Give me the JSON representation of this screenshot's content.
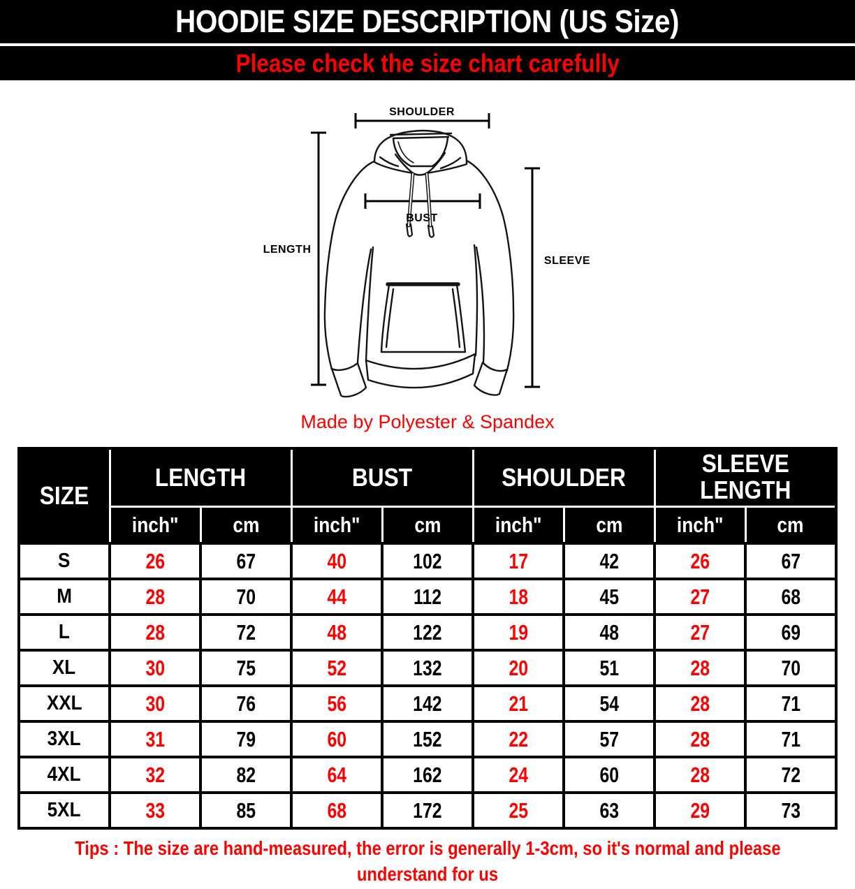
{
  "header": {
    "title": "HOODIE SIZE DESCRIPTION (US Size)",
    "subtitle": "Please check the size chart carefully"
  },
  "diagram": {
    "labels": {
      "shoulder": "SHOULDER",
      "length": "LENGTH",
      "bust": "BUST",
      "sleeve": "SLEEVE"
    },
    "material_note": "Made by Polyester & Spandex"
  },
  "size_table": {
    "corner_label": "SIZE",
    "groups": [
      {
        "label": "LENGTH"
      },
      {
        "label": "BUST"
      },
      {
        "label": "SHOULDER"
      },
      {
        "label": "SLEEVE LENGTH"
      }
    ],
    "unit_labels": {
      "inch": "inch\"",
      "cm": "cm"
    },
    "rows": [
      {
        "size": "S",
        "values": [
          26,
          67,
          40,
          102,
          17,
          42,
          26,
          67
        ]
      },
      {
        "size": "M",
        "values": [
          28,
          70,
          44,
          112,
          18,
          45,
          27,
          68
        ]
      },
      {
        "size": "L",
        "values": [
          28,
          72,
          48,
          122,
          19,
          48,
          27,
          69
        ]
      },
      {
        "size": "XL",
        "values": [
          30,
          75,
          52,
          132,
          20,
          51,
          28,
          70
        ]
      },
      {
        "size": "XXL",
        "values": [
          30,
          76,
          56,
          142,
          21,
          54,
          28,
          71
        ]
      },
      {
        "size": "3XL",
        "values": [
          31,
          79,
          60,
          152,
          22,
          57,
          28,
          71
        ]
      },
      {
        "size": "4XL",
        "values": [
          32,
          82,
          64,
          162,
          24,
          60,
          28,
          72
        ]
      },
      {
        "size": "5XL",
        "values": [
          33,
          85,
          68,
          172,
          25,
          63,
          29,
          73
        ]
      }
    ],
    "colors": {
      "inch_value": "#ff0000",
      "cm_value": "#000000",
      "header_bg": "#000000",
      "header_text": "#ffffff"
    }
  },
  "footer": {
    "tips_line1": "Tips : The size are hand-measured, the error is generally 1-3cm, so it's normal and please",
    "tips_line2": "understand for us"
  }
}
